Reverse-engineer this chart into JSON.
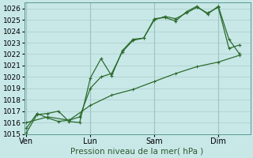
{
  "background_color": "#c8e8e8",
  "grid_color": "#a8ccc8",
  "line_color": "#2d6b2d",
  "xlabel": "Pression niveau de la mer( hPa )",
  "ylim": [
    1015.0,
    1026.5
  ],
  "yticks": [
    1015,
    1016,
    1017,
    1018,
    1019,
    1020,
    1021,
    1022,
    1023,
    1024,
    1025,
    1026
  ],
  "day_labels": [
    "Ven",
    "Lun",
    "Sam",
    "Dim"
  ],
  "day_positions": [
    0,
    3,
    6,
    9
  ],
  "xlim": [
    -0.1,
    10.5
  ],
  "line1_x": [
    0,
    0.5,
    1.0,
    1.5,
    2.0,
    2.5,
    3.0,
    3.5,
    4.0,
    4.5,
    5.0,
    5.5,
    6.0,
    6.5,
    7.0,
    7.5,
    8.0,
    8.5,
    9.0,
    9.5,
    10.0
  ],
  "line1_y": [
    1015.1,
    1016.7,
    1016.8,
    1017.0,
    1016.1,
    1016.0,
    1019.9,
    1021.6,
    1020.1,
    1022.3,
    1023.3,
    1023.4,
    1025.1,
    1025.2,
    1024.9,
    1025.7,
    1026.2,
    1025.5,
    1026.2,
    1023.3,
    1022.0
  ],
  "line2_x": [
    0,
    0.5,
    1.0,
    1.5,
    2.0,
    2.5,
    3.0,
    3.5,
    4.0,
    4.5,
    5.0,
    5.5,
    6.0,
    6.5,
    7.0,
    7.5,
    8.0,
    8.5,
    9.0,
    9.5,
    10.0
  ],
  "line2_y": [
    1015.5,
    1016.8,
    1016.4,
    1016.1,
    1016.2,
    1016.5,
    1019.0,
    1020.0,
    1020.3,
    1022.2,
    1023.2,
    1023.4,
    1025.0,
    1025.3,
    1025.1,
    1025.6,
    1026.1,
    1025.6,
    1026.1,
    1022.5,
    1022.8
  ],
  "line3_x": [
    0,
    1.0,
    2.0,
    3.0,
    4.0,
    5.0,
    6.0,
    7.0,
    8.0,
    9.0,
    10.0
  ],
  "line3_y": [
    1016.0,
    1016.5,
    1016.2,
    1017.5,
    1018.4,
    1018.9,
    1019.6,
    1020.3,
    1020.9,
    1021.3,
    1021.9
  ],
  "vline_positions": [
    0,
    3,
    6,
    9
  ]
}
